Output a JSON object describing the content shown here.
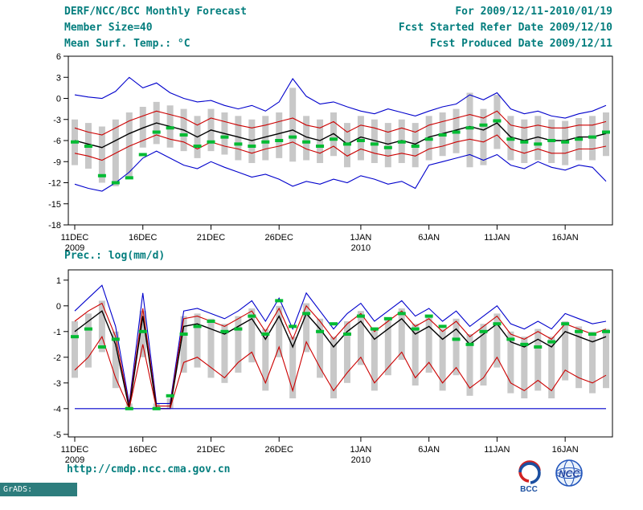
{
  "header": {
    "title": "DERF/NCC/BCC Monthly Forecast",
    "for_range": "For 2009/12/11-2010/01/19",
    "member_size": "Member Size=40",
    "refer_date": "Fcst Started Refer Date 2009/12/10",
    "produced_date": "Fcst Produced Date 2009/12/11",
    "temp_label": "Mean Surf. Temp.: °C",
    "precip_label": "Prec.: log(mm/d)"
  },
  "footer": {
    "url": "http://cmdp.ncc.cma.gov.cn",
    "grads_credit": "GrADS: COLA/IGES",
    "bcc_label": "BCC",
    "ncc_label": "NCC"
  },
  "colors": {
    "header_text": "#047e7e",
    "max_min_line": "#0000cc",
    "std_line": "#cc0000",
    "mean_line": "#000000",
    "obs_mark": "#00bb33",
    "spread_bar": "#c8c8c8",
    "grads_strip": "#2d7d7d"
  },
  "chart_data": [
    {
      "type": "line",
      "title": "Mean Surf. Temp.: °C",
      "ylabel": "°C",
      "ylim": [
        -18,
        6
      ],
      "yticks": [
        6,
        3,
        0,
        -3,
        -6,
        -9,
        -12,
        -15,
        -18
      ],
      "start_date": "11DEC2009",
      "end_date": "19JAN2010",
      "n_days": 40,
      "xticks": [
        {
          "i": 0,
          "label": "11DEC",
          "sub": "2009"
        },
        {
          "i": 5,
          "label": "16DEC"
        },
        {
          "i": 10,
          "label": "21DEC"
        },
        {
          "i": 15,
          "label": "26DEC"
        },
        {
          "i": 21,
          "label": "1JAN",
          "sub": "2010"
        },
        {
          "i": 26,
          "label": "6JAN"
        },
        {
          "i": 31,
          "label": "11JAN"
        },
        {
          "i": 36,
          "label": "16JAN"
        }
      ],
      "series": [
        {
          "name": "ensemble-max",
          "color": "#0000cc",
          "values": [
            0.5,
            0.2,
            0.0,
            1.0,
            3.0,
            1.5,
            2.2,
            0.8,
            0.0,
            -0.5,
            -0.3,
            -1.0,
            -1.5,
            -1.0,
            -1.8,
            -0.5,
            2.8,
            0.3,
            -0.8,
            -0.5,
            -1.2,
            -1.8,
            -2.2,
            -1.5,
            -2.0,
            -2.5,
            -1.8,
            -1.2,
            -0.8,
            0.5,
            -0.2,
            0.8,
            -1.5,
            -2.2,
            -1.8,
            -2.5,
            -2.8,
            -2.2,
            -1.8,
            -1.0
          ]
        },
        {
          "name": "plus-std",
          "color": "#cc0000",
          "values": [
            -4.2,
            -4.8,
            -5.2,
            -4.2,
            -3.2,
            -2.5,
            -1.8,
            -2.3,
            -2.8,
            -3.8,
            -2.8,
            -3.3,
            -3.8,
            -4.2,
            -3.8,
            -3.3,
            -2.8,
            -3.8,
            -4.2,
            -3.3,
            -4.8,
            -3.8,
            -4.2,
            -4.8,
            -4.2,
            -4.8,
            -3.8,
            -3.3,
            -2.8,
            -2.3,
            -2.8,
            -1.8,
            -3.8,
            -4.2,
            -3.8,
            -4.2,
            -4.2,
            -3.8,
            -3.8,
            -3.3
          ]
        },
        {
          "name": "ensemble-mean",
          "color": "#000000",
          "values": [
            -6.0,
            -6.5,
            -7.0,
            -6.0,
            -5.0,
            -4.2,
            -3.5,
            -4.0,
            -4.5,
            -5.5,
            -4.5,
            -5.0,
            -5.5,
            -6.0,
            -5.5,
            -5.0,
            -4.5,
            -5.5,
            -6.0,
            -5.0,
            -6.5,
            -5.5,
            -6.0,
            -6.5,
            -6.0,
            -6.5,
            -5.5,
            -5.0,
            -4.5,
            -4.0,
            -4.5,
            -3.5,
            -5.5,
            -6.0,
            -5.5,
            -6.0,
            -6.0,
            -5.5,
            -5.5,
            -5.0
          ]
        },
        {
          "name": "minus-std",
          "color": "#cc0000",
          "values": [
            -7.8,
            -8.2,
            -8.8,
            -7.8,
            -6.8,
            -6.0,
            -5.2,
            -5.8,
            -6.2,
            -7.2,
            -6.2,
            -6.8,
            -7.2,
            -7.8,
            -7.2,
            -6.8,
            -6.2,
            -7.2,
            -7.8,
            -6.8,
            -8.2,
            -7.2,
            -7.8,
            -8.2,
            -7.8,
            -8.2,
            -7.2,
            -6.8,
            -6.2,
            -5.8,
            -6.2,
            -5.2,
            -7.2,
            -7.8,
            -7.2,
            -7.8,
            -7.8,
            -7.2,
            -7.2,
            -6.8
          ]
        },
        {
          "name": "ensemble-min",
          "color": "#0000cc",
          "values": [
            -12.2,
            -12.8,
            -13.2,
            -12.0,
            -10.5,
            -8.5,
            -7.5,
            -8.5,
            -9.5,
            -10.0,
            -9.0,
            -9.8,
            -10.5,
            -11.2,
            -10.8,
            -11.5,
            -12.5,
            -11.8,
            -12.2,
            -11.5,
            -12.0,
            -11.0,
            -11.5,
            -12.2,
            -11.8,
            -12.8,
            -9.5,
            -9.0,
            -8.5,
            -8.0,
            -8.8,
            -8.0,
            -9.5,
            -10.0,
            -9.0,
            -9.8,
            -10.2,
            -9.5,
            -9.8,
            -11.8
          ]
        }
      ],
      "bars": {
        "name": "ensemble-spread",
        "color": "#c8c8c8",
        "top": [
          -3.0,
          -3.5,
          -4.0,
          -3.0,
          -2.0,
          -1.2,
          -0.5,
          -1.0,
          -1.5,
          -2.5,
          -1.5,
          -2.0,
          -2.5,
          -3.0,
          -2.5,
          -2.0,
          1.5,
          -2.5,
          -3.0,
          -2.0,
          -3.5,
          -2.5,
          -3.0,
          -3.5,
          -3.0,
          -3.5,
          -2.5,
          -2.0,
          -1.5,
          0.8,
          -1.5,
          0.5,
          -2.5,
          -3.0,
          -2.5,
          -3.0,
          -3.2,
          -2.8,
          -2.5,
          -2.0
        ],
        "bottom": [
          -9.5,
          -10.0,
          -12.0,
          -12.5,
          -11.5,
          -7.0,
          -6.5,
          -7.0,
          -7.5,
          -8.5,
          -7.5,
          -8.0,
          -8.8,
          -9.2,
          -8.8,
          -8.5,
          -9.0,
          -8.8,
          -9.2,
          -8.2,
          -9.8,
          -8.8,
          -9.2,
          -9.8,
          -9.2,
          -9.8,
          -8.8,
          -8.2,
          -7.8,
          -9.8,
          -9.5,
          -7.2,
          -8.8,
          -9.2,
          -8.8,
          -9.2,
          -9.5,
          -8.8,
          -8.8,
          -8.2
        ]
      },
      "obs": {
        "name": "observation",
        "color": "#00bb33",
        "values": [
          -6.2,
          -6.8,
          -11.0,
          -12.0,
          -11.3,
          -8.0,
          -4.8,
          -4.2,
          -5.2,
          -6.8,
          -6.2,
          -5.5,
          -6.5,
          -6.8,
          -6.2,
          -6.0,
          -5.5,
          -6.2,
          -6.8,
          -5.8,
          -6.5,
          -6.0,
          -6.5,
          -7.0,
          -6.2,
          -6.8,
          -5.8,
          -5.2,
          -4.8,
          -4.2,
          -3.8,
          -3.2,
          -5.8,
          -6.2,
          -6.5,
          -6.0,
          -6.2,
          -5.8,
          -5.5,
          -4.8
        ]
      }
    },
    {
      "type": "line",
      "title": "Prec.: log(mm/d)",
      "ylabel": "log(mm/d)",
      "ylim": [
        -5,
        1
      ],
      "yticks": [
        1,
        0,
        -1,
        -2,
        -3,
        -4,
        -5
      ],
      "start_date": "11DEC2009",
      "end_date": "19JAN2010",
      "n_days": 40,
      "xticks": [
        {
          "i": 0,
          "label": "11DEC",
          "sub": "2009"
        },
        {
          "i": 5,
          "label": "16DEC"
        },
        {
          "i": 10,
          "label": "21DEC"
        },
        {
          "i": 15,
          "label": "26DEC"
        },
        {
          "i": 21,
          "label": "1JAN",
          "sub": "2010"
        },
        {
          "i": 26,
          "label": "6JAN"
        },
        {
          "i": 31,
          "label": "11JAN"
        },
        {
          "i": 36,
          "label": "16JAN"
        }
      ],
      "series": [
        {
          "name": "ensemble-max",
          "color": "#0000cc",
          "values": [
            -0.2,
            0.3,
            0.8,
            -0.8,
            -3.8,
            0.5,
            -3.8,
            -3.8,
            -0.2,
            -0.1,
            -0.3,
            -0.5,
            -0.2,
            0.2,
            -0.6,
            0.3,
            -0.9,
            0.5,
            -0.2,
            -0.9,
            -0.3,
            0.1,
            -0.6,
            -0.2,
            0.2,
            -0.4,
            -0.1,
            -0.6,
            -0.2,
            -0.8,
            -0.4,
            0.0,
            -0.7,
            -0.9,
            -0.6,
            -0.9,
            -0.3,
            -0.5,
            -0.7,
            -0.6
          ]
        },
        {
          "name": "plus-std",
          "color": "#cc0000",
          "values": [
            -0.6,
            -0.2,
            0.1,
            -1.2,
            -3.9,
            -0.1,
            -3.9,
            -3.9,
            -0.5,
            -0.4,
            -0.6,
            -0.8,
            -0.5,
            -0.2,
            -1.0,
            -0.1,
            -1.3,
            0.0,
            -0.6,
            -1.3,
            -0.7,
            -0.3,
            -1.0,
            -0.6,
            -0.2,
            -0.8,
            -0.5,
            -1.0,
            -0.6,
            -1.2,
            -0.8,
            -0.4,
            -1.1,
            -1.3,
            -1.0,
            -1.3,
            -0.7,
            -0.9,
            -1.1,
            -0.9
          ]
        },
        {
          "name": "ensemble-mean",
          "color": "#000000",
          "values": [
            -1.0,
            -0.6,
            -0.2,
            -1.5,
            -4.0,
            -0.4,
            -4.0,
            -4.0,
            -0.8,
            -0.7,
            -0.9,
            -1.1,
            -0.8,
            -0.5,
            -1.3,
            -0.4,
            -1.6,
            -0.3,
            -0.9,
            -1.6,
            -1.0,
            -0.6,
            -1.3,
            -0.9,
            -0.5,
            -1.1,
            -0.8,
            -1.3,
            -0.9,
            -1.5,
            -1.1,
            -0.7,
            -1.4,
            -1.6,
            -1.3,
            -1.6,
            -1.0,
            -1.2,
            -1.4,
            -1.2
          ]
        },
        {
          "name": "minus-std",
          "color": "#cc0000",
          "values": [
            -2.5,
            -2.0,
            -1.2,
            -2.8,
            -4.0,
            -1.5,
            -4.0,
            -4.0,
            -2.2,
            -2.0,
            -2.4,
            -2.8,
            -2.2,
            -1.8,
            -3.0,
            -1.6,
            -3.3,
            -1.4,
            -2.4,
            -3.3,
            -2.6,
            -2.0,
            -3.0,
            -2.4,
            -1.8,
            -2.8,
            -2.2,
            -3.0,
            -2.4,
            -3.2,
            -2.8,
            -2.0,
            -3.0,
            -3.3,
            -2.9,
            -3.3,
            -2.5,
            -2.8,
            -3.0,
            -2.7
          ]
        },
        {
          "name": "ensemble-min",
          "color": "#0000cc",
          "values": [
            -4.0,
            -4.0,
            -4.0,
            -4.0,
            -4.0,
            -4.0,
            -4.0,
            -4.0,
            -4.0,
            -4.0,
            -4.0,
            -4.0,
            -4.0,
            -4.0,
            -4.0,
            -4.0,
            -4.0,
            -4.0,
            -4.0,
            -4.0,
            -4.0,
            -4.0,
            -4.0,
            -4.0,
            -4.0,
            -4.0,
            -4.0,
            -4.0,
            -4.0,
            -4.0,
            -4.0,
            -4.0,
            -4.0,
            -4.0,
            -4.0,
            -4.0,
            -4.0,
            -4.0,
            -4.0,
            -4.0
          ]
        }
      ],
      "bars": {
        "name": "ensemble-spread",
        "color": "#c8c8c8",
        "top": [
          -0.6,
          -0.3,
          0.2,
          -1.0,
          -3.8,
          -0.2,
          -3.8,
          -3.6,
          -0.4,
          -0.3,
          -0.5,
          -0.7,
          -0.4,
          -0.1,
          -0.9,
          0.0,
          -1.2,
          0.1,
          -0.5,
          -1.2,
          -0.6,
          -0.2,
          -0.9,
          -0.5,
          -0.1,
          -0.7,
          -0.4,
          -0.9,
          -0.5,
          -1.1,
          -0.7,
          -0.3,
          -1.0,
          -1.2,
          -0.9,
          -1.2,
          -0.6,
          -0.8,
          -1.0,
          -0.9
        ],
        "bottom": [
          -2.8,
          -2.4,
          -1.8,
          -3.2,
          -4.0,
          -2.0,
          -4.0,
          -4.0,
          -2.6,
          -2.4,
          -2.8,
          -3.0,
          -2.6,
          -2.2,
          -3.3,
          -2.0,
          -3.6,
          -1.8,
          -2.8,
          -3.6,
          -3.0,
          -2.3,
          -3.3,
          -2.7,
          -2.1,
          -3.1,
          -2.6,
          -3.3,
          -2.7,
          -3.5,
          -3.1,
          -2.4,
          -3.4,
          -3.6,
          -3.3,
          -3.6,
          -2.9,
          -3.2,
          -3.4,
          -3.2
        ]
      },
      "obs": {
        "name": "observation",
        "color": "#00bb33",
        "values": [
          -1.2,
          -0.9,
          -1.6,
          -1.3,
          -4.0,
          -1.0,
          -4.0,
          -3.5,
          -1.1,
          -0.8,
          -0.6,
          -1.0,
          -0.9,
          -0.4,
          -1.1,
          0.2,
          -0.8,
          -0.3,
          -1.0,
          -0.7,
          -1.1,
          -0.4,
          -0.9,
          -0.5,
          -0.3,
          -0.9,
          -0.4,
          -0.8,
          -1.3,
          -1.5,
          -1.0,
          -0.7,
          -1.3,
          -1.5,
          -1.6,
          -1.4,
          -0.7,
          -1.0,
          -1.1,
          -1.0
        ]
      }
    }
  ]
}
